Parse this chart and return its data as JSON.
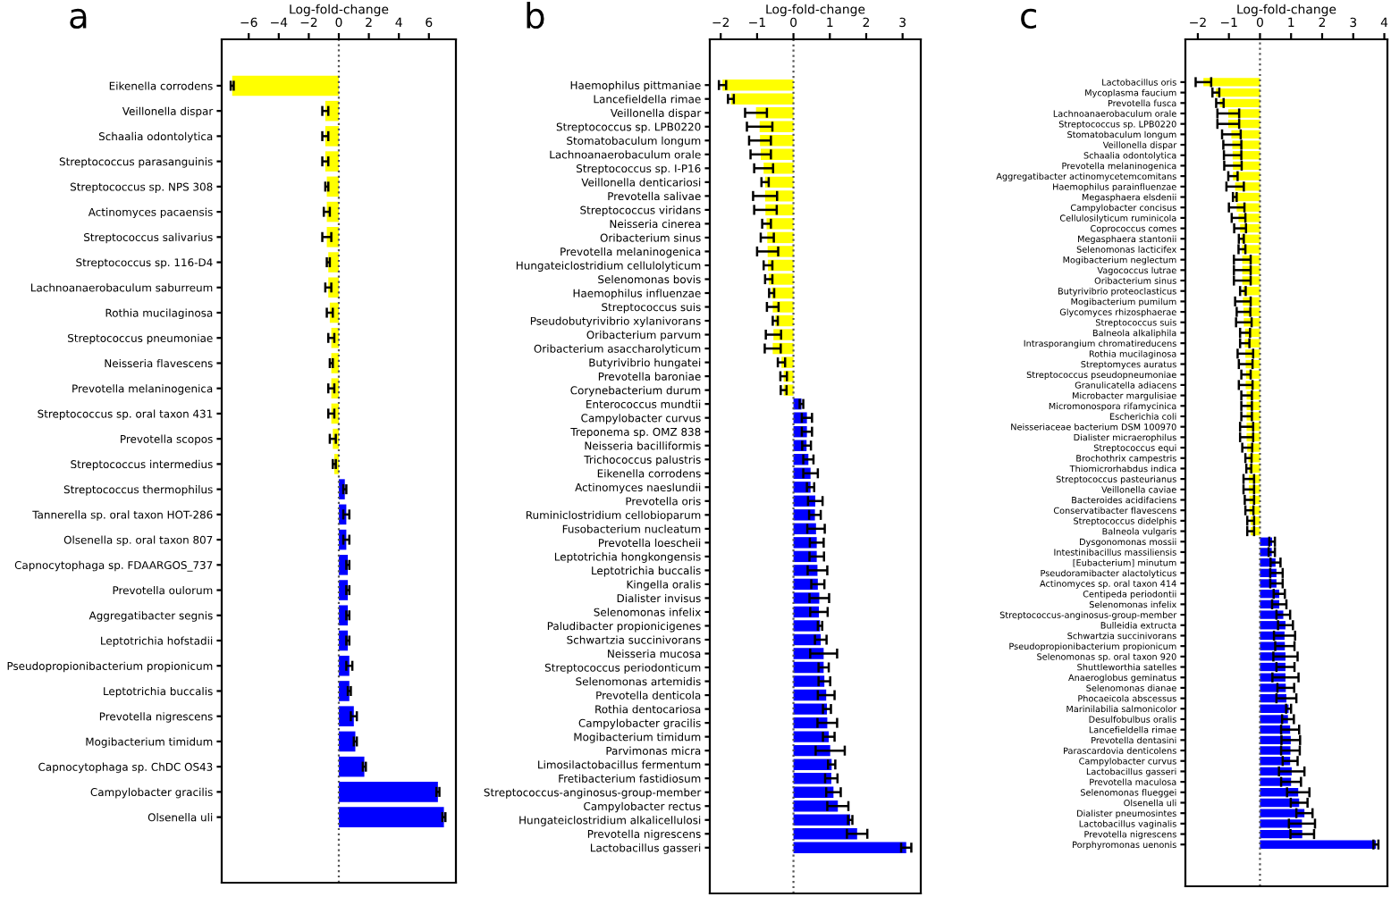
{
  "chart_data": [
    {
      "type": "bar",
      "title": "a",
      "xlabel": "Log-fold-change",
      "orientation": "horizontal",
      "categories": [
        "Eikenella corrodens",
        "Veillonella dispar",
        "Schaalia odontolytica",
        "Streptococcus parasanguinis",
        "Streptococcus sp. NPS 308",
        "Actinomyces pacaensis",
        "Streptococcus salivarius",
        "Streptococcus sp. 116-D4",
        "Lachnoanaerobaculum saburreum",
        "Rothia mucilaginosa",
        "Streptococcus pneumoniae",
        "Neisseria flavescens",
        "Prevotella melaninogenica",
        "Streptococcus sp. oral taxon 431",
        "Prevotella scopos",
        "Streptococcus intermedius",
        "Streptococcus thermophilus",
        "Tannerella sp. oral taxon HOT-286",
        "Olsenella sp. oral taxon 807",
        "Capnocytophaga sp. FDAARGOS_737",
        "Prevotella oulorum",
        "Aggregatibacter segnis",
        "Leptotrichia hofstadii",
        "Pseudopropionibacterium propionicum",
        "Leptotrichia buccalis",
        "Prevotella nigrescens",
        "Mogibacterium timidum",
        "Capnocytophaga sp. ChDC OS43",
        "Campylobacter gracilis",
        "Olsenella uli"
      ],
      "values": [
        -7.1,
        -0.9,
        -0.9,
        -0.9,
        -0.8,
        -0.8,
        -0.8,
        -0.7,
        -0.7,
        -0.6,
        -0.5,
        -0.5,
        -0.5,
        -0.5,
        -0.4,
        -0.3,
        0.4,
        0.5,
        0.5,
        0.6,
        0.6,
        0.6,
        0.6,
        0.7,
        0.7,
        1.0,
        1.1,
        1.7,
        6.6,
        7.0
      ],
      "errors": [
        0.1,
        0.2,
        0.2,
        0.2,
        0.1,
        0.2,
        0.3,
        0.1,
        0.2,
        0.2,
        0.2,
        0.1,
        0.2,
        0.2,
        0.2,
        0.1,
        0.1,
        0.2,
        0.2,
        0.1,
        0.1,
        0.1,
        0.1,
        0.2,
        0.1,
        0.2,
        0.1,
        0.1,
        0.1,
        0.1
      ],
      "colors": [
        "#ffff00",
        "#ffff00",
        "#ffff00",
        "#ffff00",
        "#ffff00",
        "#ffff00",
        "#ffff00",
        "#ffff00",
        "#ffff00",
        "#ffff00",
        "#ffff00",
        "#ffff00",
        "#ffff00",
        "#ffff00",
        "#ffff00",
        "#ffff00",
        "#0000ff",
        "#0000ff",
        "#0000ff",
        "#0000ff",
        "#0000ff",
        "#0000ff",
        "#0000ff",
        "#0000ff",
        "#0000ff",
        "#0000ff",
        "#0000ff",
        "#0000ff",
        "#0000ff",
        "#0000ff"
      ],
      "xlim": [
        -7.8,
        7.8
      ],
      "xticks": [
        {
          "value": -6,
          "label": "−6"
        },
        {
          "value": -4,
          "label": "−4"
        },
        {
          "value": -2,
          "label": "−2"
        },
        0,
        2,
        4,
        6
      ],
      "ref_lines": [
        {
          "axis": "x",
          "value": 0,
          "color": "#555555",
          "line_style": "dotted"
        }
      ]
    },
    {
      "type": "bar",
      "title": "b",
      "xlabel": "Log-fold-change",
      "orientation": "horizontal",
      "categories": [
        "Haemophilus pittmaniae",
        "Lancefieldella rimae",
        "Veillonella dispar",
        "Streptococcus sp. LPB0220",
        "Stomatobaculum longum",
        "Lachnoanaerobaculum orale",
        "Streptococcus sp. I-P16",
        "Veillonella denticariosi",
        "Prevotella salivae",
        "Streptococcus viridans",
        "Neisseria cinerea",
        "Oribacterium sinus",
        "Prevotella melaninogenica",
        "Hungateiclostridium cellulolyticum",
        "Selenomonas bovis",
        "Haemophilus influenzae",
        "Streptococcus suis",
        "Pseudobutyrivibrio xylanivorans",
        "Oribacterium parvum",
        "Oribacterium asaccharolyticum",
        "Butyrivibrio hungatei",
        "Prevotella baroniae",
        "Corynebacterium durum",
        "Enterococcus mundtii",
        "Campylobacter curvus",
        "Treponema sp. OMZ 838",
        "Neisseria bacilliformis",
        "Trichococcus palustris",
        "Eikenella corrodens",
        "Actinomyces naeslundii",
        "Prevotella oris",
        "Ruminiclostridium cellobioparum",
        "Fusobacterium nucleatum",
        "Prevotella loescheii",
        "Leptotrichia hongkongensis",
        "Leptotrichia buccalis",
        "Kingella oralis",
        "Dialister invisus",
        "Selenomonas infelix",
        "Paludibacter propionicigenes",
        "Schwartzia succinivorans",
        "Neisseria mucosa",
        "Streptococcus periodonticum",
        "Selenomonas artemidis",
        "Prevotella denticola",
        "Rothia dentocariosa",
        "Campylobacter gracilis",
        "Mogibacterium timidum",
        "Parvimonas micra",
        "Limosilactobacillus fermentum",
        "Fretibacterium fastidiosum",
        "Streptococcus-anginosus-group-member",
        "Campylobacter rectus",
        "Hungateiclostridium alkalicellulosi",
        "Prevotella nigrescens",
        "Lactobacillus gasseri"
      ],
      "values": [
        -1.95,
        -1.72,
        -1.03,
        -0.93,
        -0.92,
        -0.9,
        -0.82,
        -0.78,
        -0.78,
        -0.77,
        -0.74,
        -0.72,
        -0.71,
        -0.7,
        -0.68,
        -0.6,
        -0.57,
        -0.5,
        -0.55,
        -0.57,
        -0.33,
        -0.27,
        -0.27,
        0.22,
        0.37,
        0.37,
        0.36,
        0.41,
        0.47,
        0.47,
        0.6,
        0.59,
        0.62,
        0.64,
        0.64,
        0.66,
        0.67,
        0.71,
        0.7,
        0.73,
        0.75,
        0.83,
        0.83,
        0.85,
        0.9,
        0.92,
        0.93,
        0.97,
        1.01,
        1.05,
        1.04,
        1.1,
        1.22,
        1.56,
        1.75,
        3.1
      ],
      "errors": [
        0.1,
        0.08,
        0.3,
        0.35,
        0.3,
        0.28,
        0.26,
        0.1,
        0.33,
        0.31,
        0.12,
        0.18,
        0.29,
        0.12,
        0.1,
        0.07,
        0.16,
        0.07,
        0.21,
        0.22,
        0.1,
        0.09,
        0.08,
        0.05,
        0.14,
        0.14,
        0.12,
        0.14,
        0.2,
        0.1,
        0.2,
        0.16,
        0.24,
        0.19,
        0.2,
        0.27,
        0.18,
        0.27,
        0.24,
        0.06,
        0.16,
        0.37,
        0.14,
        0.16,
        0.23,
        0.11,
        0.27,
        0.16,
        0.4,
        0.1,
        0.17,
        0.2,
        0.29,
        0.06,
        0.28,
        0.14
      ],
      "colors": [
        "#ffff00",
        "#ffff00",
        "#ffff00",
        "#ffff00",
        "#ffff00",
        "#ffff00",
        "#ffff00",
        "#ffff00",
        "#ffff00",
        "#ffff00",
        "#ffff00",
        "#ffff00",
        "#ffff00",
        "#ffff00",
        "#ffff00",
        "#ffff00",
        "#ffff00",
        "#ffff00",
        "#ffff00",
        "#ffff00",
        "#ffff00",
        "#ffff00",
        "#ffff00",
        "#0000ff",
        "#0000ff",
        "#0000ff",
        "#0000ff",
        "#0000ff",
        "#0000ff",
        "#0000ff",
        "#0000ff",
        "#0000ff",
        "#0000ff",
        "#0000ff",
        "#0000ff",
        "#0000ff",
        "#0000ff",
        "#0000ff",
        "#0000ff",
        "#0000ff",
        "#0000ff",
        "#0000ff",
        "#0000ff",
        "#0000ff",
        "#0000ff",
        "#0000ff",
        "#0000ff",
        "#0000ff",
        "#0000ff",
        "#0000ff",
        "#0000ff",
        "#0000ff",
        "#0000ff",
        "#0000ff",
        "#0000ff",
        "#0000ff"
      ],
      "xlim": [
        -2.3,
        3.5
      ],
      "xticks": [
        {
          "value": -2,
          "label": "−2"
        },
        {
          "value": -1,
          "label": "−1"
        },
        0,
        1,
        2,
        3
      ],
      "ref_lines": [
        {
          "axis": "x",
          "value": 0,
          "color": "#555555",
          "line_style": "dotted"
        }
      ]
    },
    {
      "type": "bar",
      "title": "c",
      "xlabel": "Log-fold-change",
      "orientation": "horizontal",
      "categories": [
        "Lactobacillus oris",
        "Mycoplasma faucium",
        "Prevotella fusca",
        "Lachnoanaerobaculum orale",
        "Streptococcus sp. LPB0220",
        "Stomatobaculum longum",
        "Veillonella dispar",
        "Schaalia odontolytica",
        "Prevotella melaninogenica",
        "Aggregatibacter actinomycetemcomitans",
        "Haemophilus parainfluenzae",
        "Megasphaera elsdenii",
        "Campylobacter concisus",
        "Cellulosilyticum ruminicola",
        "Coprococcus comes",
        "Megasphaera stantonii",
        "Selenomonas lacticifex",
        "Mogibacterium neglectum",
        "Vagococcus lutrae",
        "Oribacterium sinus",
        "Butyrivibrio proteoclasticus",
        "Mogibacterium pumilum",
        "Glycomyces rhizosphaerae",
        "Streptococcus suis",
        "Balneola alkaliphila",
        "Intrasporangium chromatireducens",
        "Rothia mucilaginosa",
        "Streptomyces auratus",
        "Streptococcus pseudopneumoniae",
        "Granulicatella adiacens",
        "Microbacter margulisiae",
        "Micromonospora rifamycinica",
        "Escherichia coli",
        "Neisseriaceae bacterium DSM 100970",
        "Dialister micraerophilus",
        "Streptococcus equi",
        "Brochothrix campestris",
        "Thiomicrorhabdus indica",
        "Streptococcus pasteurianus",
        "Veillonella caviae",
        "Bacteroides acidifaciens",
        "Conservatibacter flavescens",
        "Streptococcus didelphis",
        "Balneola vulgaris",
        "Dysgonomonas mossii",
        "Intestinibacillus massiliensis",
        "[Eubacterium] minutum",
        "Pseudoramibacter alactolyticus",
        "Actinomyces sp. oral taxon 414",
        "Centipeda periodontii",
        "Selenomonas infelix",
        "Streptococcus-anginosus-group-member",
        "Bulleidia extructa",
        "Schwartzia succinivorans",
        "Pseudopropionibacterium propionicum",
        "Selenomonas sp. oral taxon 920",
        "Shuttleworthia satelles",
        "Anaeroglobus geminatus",
        "Selenomonas dianae",
        "Phocaeicola abscessus",
        "Marinilabilia salmonicolor",
        "Desulfobulbus oralis",
        "Lancefieldella rimae",
        "Prevotella dentasini",
        "Parascardovia denticolens",
        "Campylobacter curvus",
        "Lactobacillus gasseri",
        "Prevotella maculosa",
        "Selenomonas flueggei",
        "Olsenella uli",
        "Dialister pneumosintes",
        "Lactobacillus vaginalis",
        "Prevotella nigrescens",
        "Porphyromonas uenonis"
      ],
      "values": [
        -1.82,
        -1.42,
        -1.29,
        -1.02,
        -1.02,
        -0.92,
        -0.89,
        -0.88,
        -0.87,
        -0.87,
        -0.8,
        -0.81,
        -0.75,
        -0.69,
        -0.64,
        -0.6,
        -0.58,
        -0.57,
        -0.57,
        -0.57,
        -0.55,
        -0.55,
        -0.53,
        -0.52,
        -0.48,
        -0.49,
        -0.47,
        -0.46,
        -0.45,
        -0.46,
        -0.43,
        -0.43,
        -0.43,
        -0.43,
        -0.43,
        -0.41,
        -0.37,
        -0.36,
        -0.36,
        -0.36,
        -0.34,
        -0.34,
        -0.3,
        -0.3,
        0.39,
        0.38,
        0.5,
        0.53,
        0.53,
        0.62,
        0.62,
        0.75,
        0.82,
        0.79,
        0.8,
        0.82,
        0.82,
        0.82,
        0.83,
        0.85,
        0.92,
        0.9,
        0.97,
        0.99,
        0.98,
        0.97,
        1.02,
        1.0,
        1.23,
        1.26,
        1.43,
        1.35,
        1.36,
        3.73
      ],
      "errors": [
        0.25,
        0.11,
        0.12,
        0.35,
        0.35,
        0.3,
        0.29,
        0.28,
        0.28,
        0.15,
        0.28,
        0.06,
        0.25,
        0.22,
        0.19,
        0.08,
        0.11,
        0.27,
        0.27,
        0.27,
        0.09,
        0.25,
        0.22,
        0.25,
        0.16,
        0.15,
        0.25,
        0.22,
        0.15,
        0.22,
        0.17,
        0.17,
        0.17,
        0.21,
        0.21,
        0.16,
        0.1,
        0.08,
        0.17,
        0.17,
        0.15,
        0.13,
        0.11,
        0.11,
        0.09,
        0.1,
        0.16,
        0.2,
        0.2,
        0.18,
        0.23,
        0.22,
        0.24,
        0.34,
        0.31,
        0.39,
        0.29,
        0.42,
        0.27,
        0.32,
        0.08,
        0.19,
        0.29,
        0.3,
        0.3,
        0.24,
        0.41,
        0.32,
        0.36,
        0.27,
        0.26,
        0.42,
        0.38,
        0.08
      ],
      "colors": [
        "#ffff00",
        "#ffff00",
        "#ffff00",
        "#ffff00",
        "#ffff00",
        "#ffff00",
        "#ffff00",
        "#ffff00",
        "#ffff00",
        "#ffff00",
        "#ffff00",
        "#ffff00",
        "#ffff00",
        "#ffff00",
        "#ffff00",
        "#ffff00",
        "#ffff00",
        "#ffff00",
        "#ffff00",
        "#ffff00",
        "#ffff00",
        "#ffff00",
        "#ffff00",
        "#ffff00",
        "#ffff00",
        "#ffff00",
        "#ffff00",
        "#ffff00",
        "#ffff00",
        "#ffff00",
        "#ffff00",
        "#ffff00",
        "#ffff00",
        "#ffff00",
        "#ffff00",
        "#ffff00",
        "#ffff00",
        "#ffff00",
        "#ffff00",
        "#ffff00",
        "#ffff00",
        "#ffff00",
        "#ffff00",
        "#ffff00",
        "#0000ff",
        "#0000ff",
        "#0000ff",
        "#0000ff",
        "#0000ff",
        "#0000ff",
        "#0000ff",
        "#0000ff",
        "#0000ff",
        "#0000ff",
        "#0000ff",
        "#0000ff",
        "#0000ff",
        "#0000ff",
        "#0000ff",
        "#0000ff",
        "#0000ff",
        "#0000ff",
        "#0000ff",
        "#0000ff",
        "#0000ff",
        "#0000ff",
        "#0000ff",
        "#0000ff",
        "#0000ff",
        "#0000ff",
        "#0000ff",
        "#0000ff",
        "#0000ff",
        "#0000ff"
      ],
      "xlim": [
        -2.4,
        4.1
      ],
      "xticks": [
        {
          "value": -2,
          "label": "−2"
        },
        {
          "value": -1,
          "label": "−1"
        },
        0,
        1,
        2,
        3,
        4
      ],
      "ref_lines": [
        {
          "axis": "x",
          "value": 0,
          "color": "#555555",
          "line_style": "dotted"
        }
      ]
    }
  ]
}
